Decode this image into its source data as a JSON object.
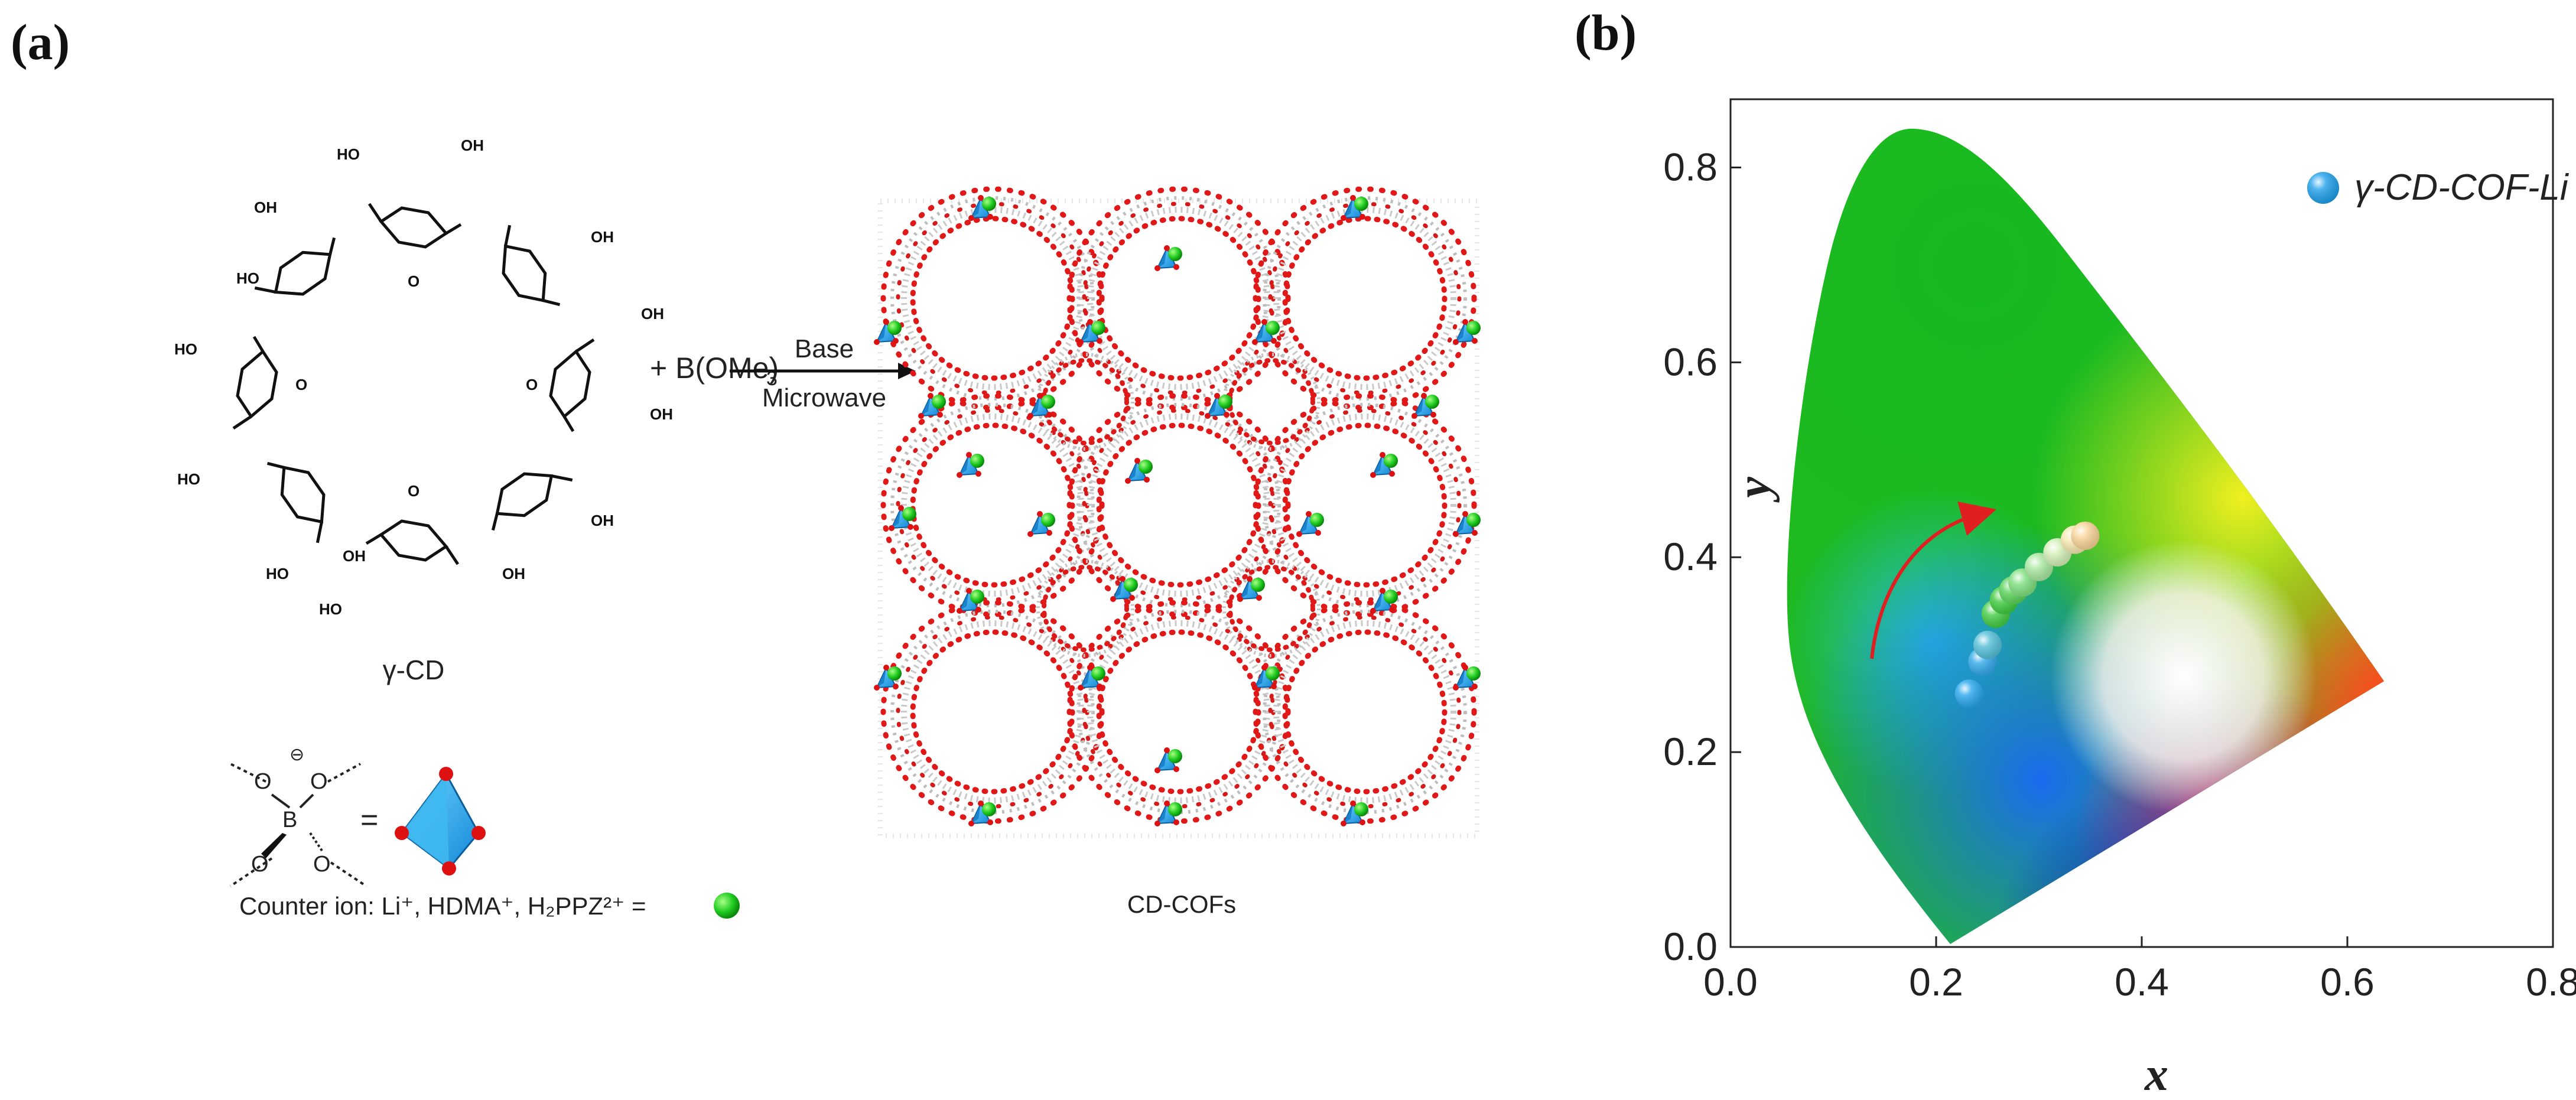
{
  "panel_a": {
    "label": "(a)",
    "molecule_label": "γ-CD",
    "plus_reagent": "+ B(OMe)",
    "reagent_subscript": "3",
    "arrow_top": "Base",
    "arrow_bottom": "Microwave",
    "product_label": "CD-COFs",
    "legend_B": "B",
    "legend_O": "O",
    "legend_charge": "⊖",
    "legend_equals": "=",
    "oh_label": "OH",
    "ho_label": "HO",
    "o_label": "O",
    "counter_ion_text": "Counter ion: Li⁺, HDMA⁺, H₂PPZ²⁺ ="
  },
  "panel_b": {
    "label": "(b)",
    "chart_data": {
      "type": "scatter",
      "xlabel": "x",
      "ylabel": "y",
      "xlim": [
        0.0,
        0.8
      ],
      "ylim": [
        0.0,
        0.87
      ],
      "xticks": [
        "0.0",
        "0.2",
        "0.4",
        "0.6",
        "0.8"
      ],
      "yticks": [
        "0.0",
        "0.2",
        "0.4",
        "0.6",
        "0.8"
      ],
      "legend_position": "top-right",
      "series": [
        {
          "name": "γ-CD-COF-Li",
          "points": [
            {
              "x": 0.232,
              "y": 0.26,
              "color": "#2aa7ee"
            },
            {
              "x": 0.245,
              "y": 0.293,
              "color": "#33aaea"
            },
            {
              "x": 0.25,
              "y": 0.31,
              "color": "#55c0d8"
            },
            {
              "x": 0.258,
              "y": 0.342,
              "color": "#44cc44"
            },
            {
              "x": 0.266,
              "y": 0.356,
              "color": "#3fcc3f"
            },
            {
              "x": 0.275,
              "y": 0.366,
              "color": "#5ad45a"
            },
            {
              "x": 0.284,
              "y": 0.374,
              "color": "#7ee07e"
            },
            {
              "x": 0.3,
              "y": 0.39,
              "color": "#a8e8a0"
            },
            {
              "x": 0.318,
              "y": 0.405,
              "color": "#d4f0b8"
            },
            {
              "x": 0.335,
              "y": 0.418,
              "color": "#f4e8b0"
            },
            {
              "x": 0.345,
              "y": 0.422,
              "color": "#f8d498"
            }
          ]
        }
      ],
      "annotation": "red curved arrow indicating shift from blue toward yellow-white"
    },
    "colors": {
      "arrow": "#e02020",
      "marker": "#1fa0ea"
    }
  }
}
